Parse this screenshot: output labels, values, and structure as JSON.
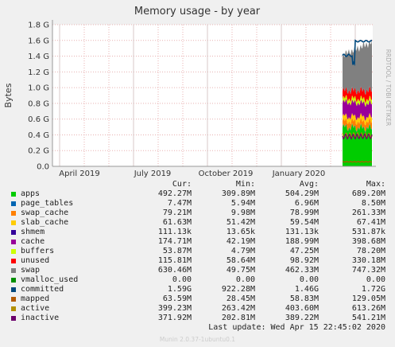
{
  "chart_data": {
    "type": "area",
    "title": "Memory usage - by year",
    "ylabel": "Bytes",
    "side_label": "RRDTOOL / TOBI OETIKER",
    "ylim": [
      0,
      1.8
    ],
    "y_ticks": [
      "0.0",
      "0.2 G",
      "0.4 G",
      "0.6 G",
      "0.8 G",
      "1.0 G",
      "1.2 G",
      "1.4 G",
      "1.6 G",
      "1.8 G"
    ],
    "x_ticks": [
      "April 2019",
      "July 2019",
      "October 2019",
      "January 2020"
    ],
    "legend_headers": {
      "cur": "Cur:",
      "min": "Min:",
      "avg": "Avg:",
      "max": "Max:"
    },
    "series": [
      {
        "name": "apps",
        "color": "#00cc00",
        "cur": "492.27M",
        "min": "309.89M",
        "avg": "504.29M",
        "max": "689.20M"
      },
      {
        "name": "page_tables",
        "color": "#0066b3",
        "cur": "7.47M",
        "min": "5.94M",
        "avg": "6.96M",
        "max": "8.50M"
      },
      {
        "name": "swap_cache",
        "color": "#ff8000",
        "cur": "79.21M",
        "min": "9.98M",
        "avg": "78.99M",
        "max": "261.33M"
      },
      {
        "name": "slab_cache",
        "color": "#ffcc00",
        "cur": "61.63M",
        "min": "51.42M",
        "avg": "59.54M",
        "max": "67.41M"
      },
      {
        "name": "shmem",
        "color": "#330099",
        "cur": "111.13k",
        "min": "13.65k",
        "avg": "131.13k",
        "max": "531.87k"
      },
      {
        "name": "cache",
        "color": "#990099",
        "cur": "174.71M",
        "min": "42.19M",
        "avg": "188.99M",
        "max": "398.68M"
      },
      {
        "name": "buffers",
        "color": "#ccff00",
        "cur": "53.87M",
        "min": "4.79M",
        "avg": "47.25M",
        "max": "78.20M"
      },
      {
        "name": "unused",
        "color": "#ff0000",
        "cur": "115.81M",
        "min": "58.64M",
        "avg": "98.92M",
        "max": "330.18M"
      },
      {
        "name": "swap",
        "color": "#808080",
        "cur": "630.46M",
        "min": "49.75M",
        "avg": "462.33M",
        "max": "747.32M"
      },
      {
        "name": "vmalloc_used",
        "color": "#008f00",
        "cur": "0.00",
        "min": "0.00",
        "avg": "0.00",
        "max": "0.00"
      },
      {
        "name": "committed",
        "color": "#00487d",
        "cur": "1.59G",
        "min": "922.28M",
        "avg": "1.46G",
        "max": "1.72G"
      },
      {
        "name": "mapped",
        "color": "#b35a00",
        "cur": "63.59M",
        "min": "28.45M",
        "avg": "58.83M",
        "max": "129.05M"
      },
      {
        "name": "active",
        "color": "#b38f00",
        "cur": "399.23M",
        "min": "263.42M",
        "avg": "403.60M",
        "max": "613.26M"
      },
      {
        "name": "inactive",
        "color": "#6b006b",
        "cur": "371.92M",
        "min": "202.81M",
        "avg": "389.22M",
        "max": "541.21M"
      }
    ]
  },
  "footer": {
    "last_update": "Last update: Wed Apr 15 22:45:02 2020",
    "munin_version": "Munin 2.0.37-1ubuntu0.1"
  }
}
